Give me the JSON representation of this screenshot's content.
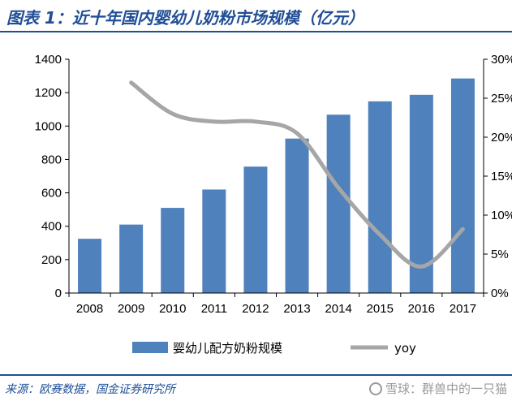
{
  "header": {
    "title": "图表 1：近十年国内婴幼儿奶粉市场规模（亿元）"
  },
  "footer": {
    "source": "来源：欧赛数据，国金证券研究所",
    "watermark": "雪球：群兽中的一只猫",
    "watermark_icon": "snowball-icon"
  },
  "colors": {
    "bar": "#4f81bd",
    "line": "#a6a6a6",
    "accent": "#1f4e96"
  },
  "chart_data": {
    "type": "bar",
    "categories": [
      "2008",
      "2009",
      "2010",
      "2011",
      "2012",
      "2013",
      "2014",
      "2015",
      "2016",
      "2017"
    ],
    "series": [
      {
        "name": "婴幼儿配方奶粉规模",
        "type": "bar",
        "axis": "left",
        "values": [
          325,
          410,
          510,
          620,
          757,
          925,
          1068,
          1148,
          1187,
          1285
        ]
      },
      {
        "name": "yoy",
        "type": "line",
        "axis": "right",
        "values": [
          null,
          27.0,
          23.0,
          22.0,
          22.0,
          20.5,
          13.5,
          7.5,
          3.4,
          8.2
        ]
      }
    ],
    "left_axis": {
      "min": 0,
      "max": 1400,
      "step": 200,
      "ticks": [
        "0",
        "200",
        "400",
        "600",
        "800",
        "1000",
        "1200",
        "1400"
      ]
    },
    "right_axis": {
      "min": 0,
      "max": 30,
      "step": 5,
      "ticks": [
        "0%",
        "5%",
        "10%",
        "15%",
        "20%",
        "25%",
        "30%"
      ]
    },
    "legend": [
      {
        "label": "婴幼儿配方奶粉规模",
        "kind": "bar"
      },
      {
        "label": "yoy",
        "kind": "line"
      }
    ],
    "legend_position": "bottom",
    "grid": false
  }
}
